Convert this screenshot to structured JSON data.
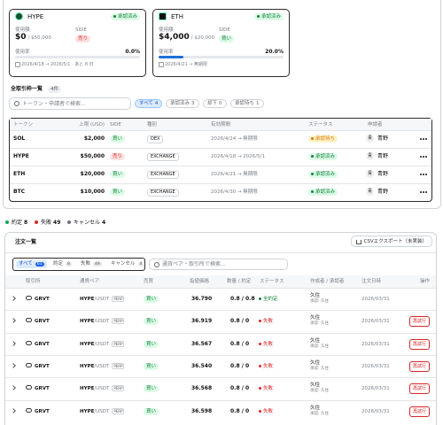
{
  "cards": [
    {
      "token": "HYPE",
      "status": "承認済み",
      "status_tone": "green",
      "used_label": "使用額",
      "side_label": "SIDE",
      "used": "$0",
      "limit": "/ $50,000",
      "side": "売り",
      "side_tone": "red",
      "rate_label": "使用率",
      "rate": "0.0%",
      "period": "2026/4/18 → 2026/5/1 · あと 8 日"
    },
    {
      "token": "ETH",
      "status": "承認済み",
      "status_tone": "green",
      "used_label": "使用額",
      "side_label": "SIDE",
      "used": "$4,000",
      "limit": "/ $20,000",
      "side": "買い",
      "side_tone": "green",
      "rate_label": "使用率",
      "rate": "20.0%",
      "period": "2026/4/21 → 無期限"
    }
  ],
  "limits": {
    "title": "全取引枠一覧",
    "count": "4件",
    "search_placeholder": "トークン・申請者で検索...",
    "filters": [
      {
        "label": "すべて",
        "count": "4"
      },
      {
        "label": "承認済み",
        "count": "3"
      },
      {
        "label": "却下",
        "count": "0"
      },
      {
        "label": "承認待ち",
        "count": "1"
      }
    ],
    "columns": [
      "トークン",
      "上限 (USD)",
      "SIDE",
      "種別",
      "有効期間",
      "ステータス",
      "申請者"
    ],
    "rows": [
      {
        "token": "SOL",
        "limit": "$2,000",
        "side": "買い",
        "side_tone": "green",
        "type": "DEX",
        "period": "2026/4/24 → 無期限",
        "status": "承認待ち",
        "status_tone": "orange",
        "avatar": "青",
        "applicant": "青野"
      },
      {
        "token": "HYPE",
        "limit": "$50,000",
        "side": "売り",
        "side_tone": "red",
        "type": "EXCHANGE",
        "period": "2026/4/18 → 2026/5/1",
        "status": "承認済み",
        "status_tone": "green",
        "avatar": "青",
        "applicant": "青野"
      },
      {
        "token": "ETH",
        "limit": "$20,000",
        "side": "買い",
        "side_tone": "green",
        "type": "EXCHANGE",
        "period": "2026/4/21 → 無期限",
        "status": "承認済み",
        "status_tone": "green",
        "avatar": "青",
        "applicant": "青野"
      },
      {
        "token": "BTC",
        "limit": "$10,000",
        "side": "買い",
        "side_tone": "green",
        "type": "EXCHANGE",
        "period": "2026/4/30 → 無期限",
        "status": "承認済み",
        "status_tone": "green",
        "avatar": "青",
        "applicant": "青野"
      }
    ]
  },
  "summary": [
    {
      "label": "約定",
      "count": "8",
      "tone": "green"
    },
    {
      "label": "失敗",
      "count": "49",
      "tone": "red"
    },
    {
      "label": "キャンセル",
      "count": "4",
      "tone": "gray"
    }
  ],
  "orders": {
    "title": "注文一覧",
    "export": "CSVエクスポート（未実装）",
    "tabs": [
      {
        "label": "すべて",
        "count": "61"
      },
      {
        "label": "約定",
        "count": "8"
      },
      {
        "label": "失敗",
        "count": "49"
      },
      {
        "label": "キャンセル",
        "count": "4"
      }
    ],
    "search_placeholder": "通貨ペア・取引所で検索...",
    "columns": [
      "取引所",
      "通貨ペア",
      "売買",
      "指値価格",
      "数量 / 約定",
      "ステータス",
      "作成者 / 承認者",
      "注文日時",
      "操作"
    ],
    "rows": [
      {
        "exchange": "GRVT",
        "base": "HYPE",
        "quote": "/USDT",
        "tag": "PERP",
        "side": "買い",
        "price": "36.790",
        "qty": "0.8 / 0.8",
        "status": "全約定",
        "status_tone": "green",
        "creator": "久住",
        "approver": "承認: 久住",
        "date": "2026/03/31"
      },
      {
        "exchange": "GRVT",
        "base": "HYPE",
        "quote": "/USDT",
        "tag": "PERP",
        "side": "買い",
        "price": "36.919",
        "qty": "0.8 / 0",
        "status": "失敗",
        "status_tone": "red",
        "creator": "久住",
        "approver": "承認: 久住",
        "date": "2026/03/31",
        "action": "再試行"
      },
      {
        "exchange": "GRVT",
        "base": "HYPE",
        "quote": "/USDT",
        "tag": "PERP",
        "side": "買い",
        "price": "36.567",
        "qty": "0.8 / 0",
        "status": "失敗",
        "status_tone": "red",
        "creator": "久住",
        "approver": "承認: 久住",
        "date": "2026/03/31",
        "action": "再試行"
      },
      {
        "exchange": "GRVT",
        "base": "HYPE",
        "quote": "/USDT",
        "tag": "PERP",
        "side": "買い",
        "price": "36.540",
        "qty": "0.8 / 0",
        "status": "失敗",
        "status_tone": "red",
        "creator": "久住",
        "approver": "承認: 久住",
        "date": "2026/03/31",
        "action": "再試行"
      },
      {
        "exchange": "GRVT",
        "base": "HYPE",
        "quote": "/USDT",
        "tag": "PERP",
        "side": "買い",
        "price": "36.568",
        "qty": "0.8 / 0",
        "status": "失敗",
        "status_tone": "red",
        "creator": "久住",
        "approver": "承認: 久住",
        "date": "2026/03/31",
        "action": "再試行"
      },
      {
        "exchange": "GRVT",
        "base": "HYPE",
        "quote": "/USDT",
        "tag": "PERP",
        "side": "買い",
        "price": "36.598",
        "qty": "0.8 / 0",
        "status": "失敗",
        "status_tone": "red",
        "creator": "久住",
        "approver": "承認: 久住",
        "date": "2026/03/31",
        "action": "再試行"
      }
    ]
  }
}
